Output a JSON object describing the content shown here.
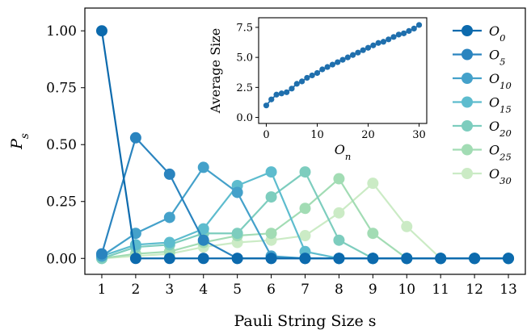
{
  "chart_data": [
    {
      "type": "line",
      "xlabel": "Pauli String Size s",
      "ylabel": "P_s",
      "xlim": [
        0.5,
        13.5
      ],
      "ylim": [
        -0.07,
        1.1
      ],
      "x": [
        1,
        2,
        3,
        4,
        5,
        6,
        7,
        8,
        9,
        10,
        11,
        12,
        13
      ],
      "x_ticks": [
        "1",
        "2",
        "3",
        "4",
        "5",
        "6",
        "7",
        "8",
        "9",
        "10",
        "11",
        "12",
        "13"
      ],
      "y_ticks": [
        "0.00",
        "0.25",
        "0.50",
        "0.75",
        "1.00"
      ],
      "grid": false,
      "legend_position": "right",
      "series": [
        {
          "name": "O0",
          "label_base": "O",
          "label_sub": "0",
          "color": "#0c6aad",
          "values": [
            1.0,
            0.0,
            0.0,
            0.0,
            0.0,
            0.0,
            0.0,
            0.0,
            0.0,
            0.0,
            0.0,
            0.0,
            0.0
          ]
        },
        {
          "name": "O5",
          "label_base": "O",
          "label_sub": "5",
          "color": "#2a84bf",
          "values": [
            0.02,
            0.53,
            0.37,
            0.08,
            0.0,
            0.0,
            0.0,
            0.0,
            0.0,
            0.0,
            0.0,
            0.0,
            0.0
          ]
        },
        {
          "name": "O10",
          "label_base": "O",
          "label_sub": "10",
          "color": "#44a1ca",
          "values": [
            0.01,
            0.11,
            0.18,
            0.4,
            0.29,
            0.01,
            0.0,
            0.0,
            0.0,
            0.0,
            0.0,
            0.0,
            0.0
          ]
        },
        {
          "name": "O15",
          "label_base": "O",
          "label_sub": "15",
          "color": "#5dbcce",
          "values": [
            0.01,
            0.06,
            0.07,
            0.13,
            0.32,
            0.38,
            0.03,
            0.0,
            0.0,
            0.0,
            0.0,
            0.0,
            0.0
          ]
        },
        {
          "name": "O20",
          "label_base": "O",
          "label_sub": "20",
          "color": "#7dcdbe",
          "values": [
            0.0,
            0.05,
            0.06,
            0.11,
            0.11,
            0.27,
            0.38,
            0.08,
            0.0,
            0.0,
            0.0,
            0.0,
            0.0
          ]
        },
        {
          "name": "O25",
          "label_base": "O",
          "label_sub": "25",
          "color": "#a2dcb4",
          "values": [
            0.0,
            0.02,
            0.03,
            0.07,
            0.1,
            0.11,
            0.22,
            0.35,
            0.11,
            0.0,
            0.0,
            0.0,
            0.0
          ]
        },
        {
          "name": "O30",
          "label_base": "O",
          "label_sub": "30",
          "color": "#cbebc5",
          "values": [
            0.0,
            0.01,
            0.02,
            0.05,
            0.07,
            0.08,
            0.1,
            0.2,
            0.33,
            0.14,
            0.0,
            0.0,
            0.0
          ]
        }
      ]
    },
    {
      "type": "scatter",
      "inset": true,
      "xlabel": "O_n",
      "ylabel": "Average Size",
      "xlim": [
        -1.5,
        31.5
      ],
      "ylim": [
        -0.5,
        8.3
      ],
      "x_ticks": [
        "0",
        "10",
        "20",
        "30"
      ],
      "y_ticks": [
        "0.0",
        "2.5",
        "5.0",
        "7.5"
      ],
      "color": "#1f6fad",
      "x": [
        0,
        1,
        2,
        3,
        4,
        5,
        6,
        7,
        8,
        9,
        10,
        11,
        12,
        13,
        14,
        15,
        16,
        17,
        18,
        19,
        20,
        21,
        22,
        23,
        24,
        25,
        26,
        27,
        28,
        29,
        30
      ],
      "values": [
        1.0,
        1.5,
        1.9,
        2.0,
        2.1,
        2.4,
        2.8,
        3.0,
        3.3,
        3.5,
        3.7,
        4.0,
        4.2,
        4.4,
        4.6,
        4.8,
        5.0,
        5.2,
        5.4,
        5.6,
        5.8,
        6.0,
        6.2,
        6.3,
        6.5,
        6.7,
        6.9,
        7.0,
        7.2,
        7.4,
        7.7
      ]
    }
  ]
}
